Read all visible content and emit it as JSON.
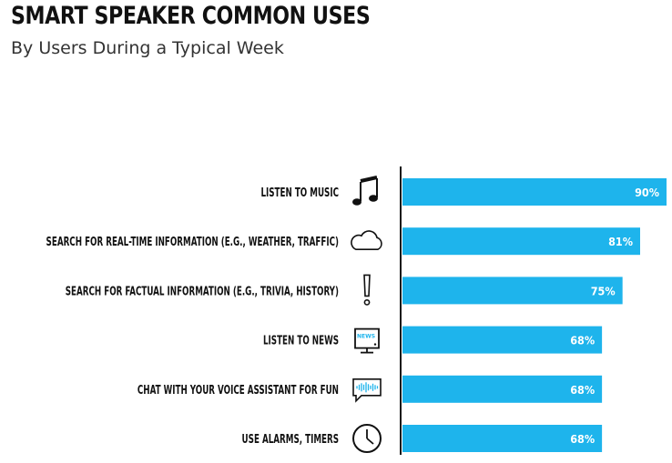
{
  "chart_data": {
    "type": "bar",
    "orientation": "horizontal",
    "title": "SMART SPEAKER COMMON USES",
    "subtitle": "By Users During a Typical Week",
    "categories": [
      "LISTEN TO MUSIC",
      "SEARCH FOR REAL-TIME INFORMATION (E.G., WEATHER, TRAFFIC)",
      "SEARCH FOR FACTUAL INFORMATION (E.G., TRIVIA, HISTORY)",
      "LISTEN TO NEWS",
      "CHAT WITH YOUR VOICE ASSISTANT FOR FUN",
      "USE ALARMS, TIMERS"
    ],
    "values": [
      90,
      81,
      75,
      68,
      68,
      68
    ],
    "value_labels": [
      "90%",
      "81%",
      "75%",
      "68%",
      "68%",
      "68%"
    ],
    "icons": [
      "music-note-icon",
      "cloud-icon",
      "exclamation-icon",
      "news-tv-icon",
      "voice-chat-icon",
      "clock-icon"
    ],
    "news_icon_text": "NEWS",
    "xlim": [
      0,
      100
    ],
    "grid": false,
    "legend": "none",
    "bar_color": "#1eb4ec",
    "axis_color": "#1a1a1a"
  }
}
